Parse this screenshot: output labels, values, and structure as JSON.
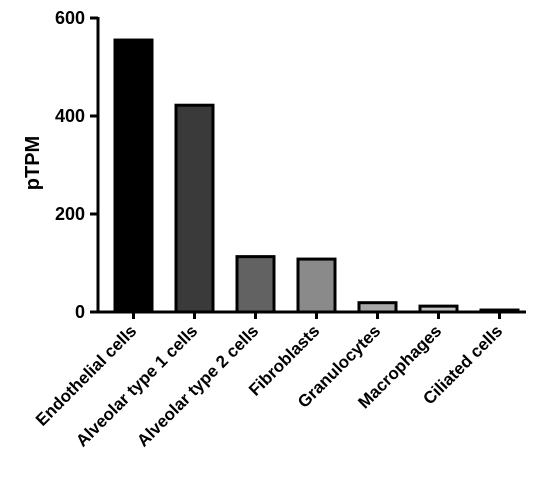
{
  "chart_data": {
    "type": "bar",
    "title": "",
    "xlabel": "",
    "ylabel": "pTPM",
    "ylim": [
      0,
      600
    ],
    "yticks": [
      0,
      200,
      400,
      600
    ],
    "grid": false,
    "categories": [
      "Endothelial cells",
      "Alveolar type 1 cells",
      "Alveolar type 2 cells",
      "Fibroblasts",
      "Granulocytes",
      "Macrophages",
      "Ciliated cells"
    ],
    "values": [
      555,
      422,
      113,
      108,
      19,
      12,
      4
    ],
    "bar_colors": [
      "#000000",
      "#3a3a3a",
      "#626262",
      "#8a8a8a",
      "#a8a8a8",
      "#c4c4c4",
      "#dedede"
    ]
  }
}
